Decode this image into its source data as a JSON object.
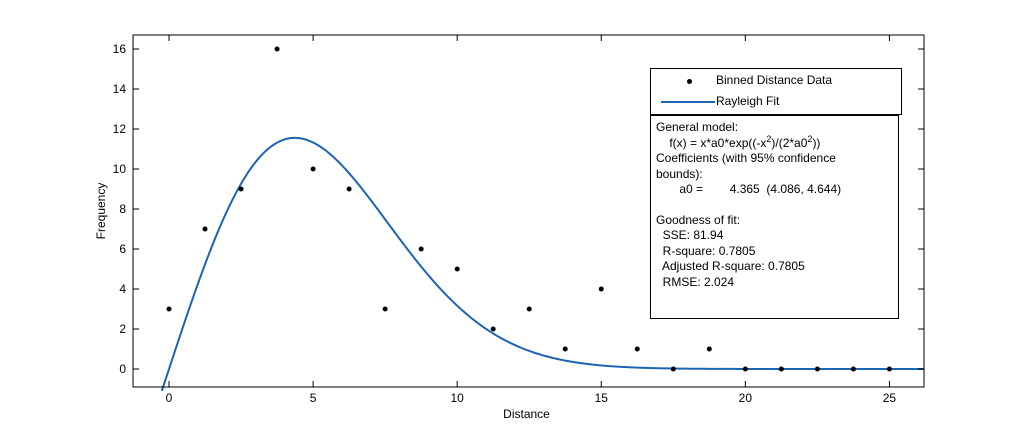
{
  "chart_data": {
    "type": "scatter",
    "xlabel": "Distance",
    "ylabel": "Frequency",
    "xlim": [
      -1.25,
      26.2
    ],
    "ylim": [
      -0.9,
      16.7
    ],
    "xticks": [
      0,
      5,
      10,
      15,
      20,
      25
    ],
    "yticks": [
      0,
      2,
      4,
      6,
      8,
      10,
      12,
      14,
      16
    ],
    "grid": false,
    "legend_placement": "top-right",
    "series": [
      {
        "name": "Binned Distance Data",
        "kind": "points",
        "color": "#000000",
        "x": [
          0,
          1.25,
          2.5,
          3.75,
          5,
          6.25,
          7.5,
          8.75,
          10,
          11.25,
          12.5,
          13.75,
          15,
          16.25,
          17.5,
          18.75,
          20,
          21.25,
          22.5,
          23.75,
          25
        ],
        "y": [
          3,
          7,
          9,
          16,
          10,
          9,
          3,
          6,
          5,
          2,
          3,
          1,
          4,
          1,
          0,
          1,
          0,
          0,
          0,
          0,
          0
        ]
      },
      {
        "name": "Rayleigh Fit",
        "kind": "line",
        "color": "#1c64b4",
        "model": "x*a0*exp(-x^2/(2*a0^2))",
        "a0": 4.365,
        "x_range": [
          -0.25,
          26.2
        ]
      }
    ]
  },
  "fit_box": {
    "line1": "General model:",
    "formula_parts": [
      "    f(x) = x*a0*exp((-x",
      "2",
      ")/(2*a0",
      "2",
      "))"
    ],
    "line3": "Coefficients (with 95% confidence",
    "line4": "bounds):",
    "line5": "       a0 =        4.365  (4.086, 4.644)",
    "line6": "Goodness of fit:",
    "line7": "  SSE: 81.94",
    "line8": "  R-square: 0.7805",
    "line9": "  Adjusted R-square: 0.7805",
    "line10": "  RMSE: 2.024"
  }
}
